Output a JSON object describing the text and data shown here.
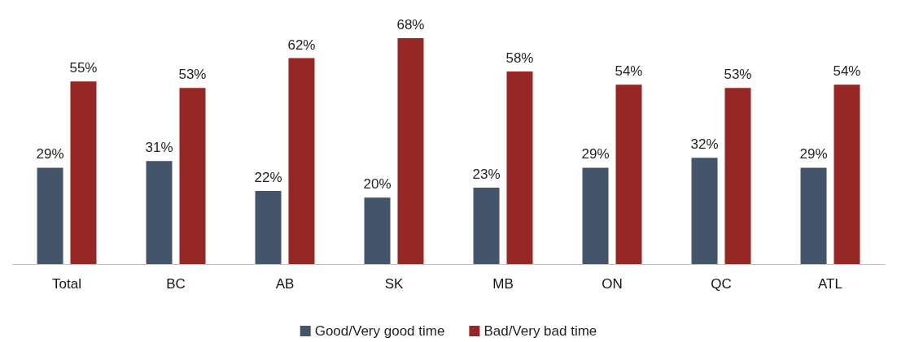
{
  "chart_data": {
    "type": "bar",
    "categories": [
      "Total",
      "BC",
      "AB",
      "SK",
      "MB",
      "ON",
      "QC",
      "ATL"
    ],
    "series": [
      {
        "name": "Good/Very good time",
        "color": "#44546a",
        "values": [
          29,
          31,
          22,
          20,
          23,
          29,
          32,
          29
        ],
        "value_labels": [
          "29%",
          "31%",
          "22%",
          "20%",
          "23%",
          "29%",
          "32%",
          "29%"
        ]
      },
      {
        "name": "Bad/Very bad time",
        "color": "#952825",
        "values": [
          55,
          53,
          62,
          68,
          58,
          54,
          53,
          54
        ],
        "value_labels": [
          "55%",
          "53%",
          "62%",
          "68%",
          "58%",
          "54%",
          "53%",
          "54%"
        ]
      }
    ],
    "legend": "bottom",
    "grid": false
  }
}
